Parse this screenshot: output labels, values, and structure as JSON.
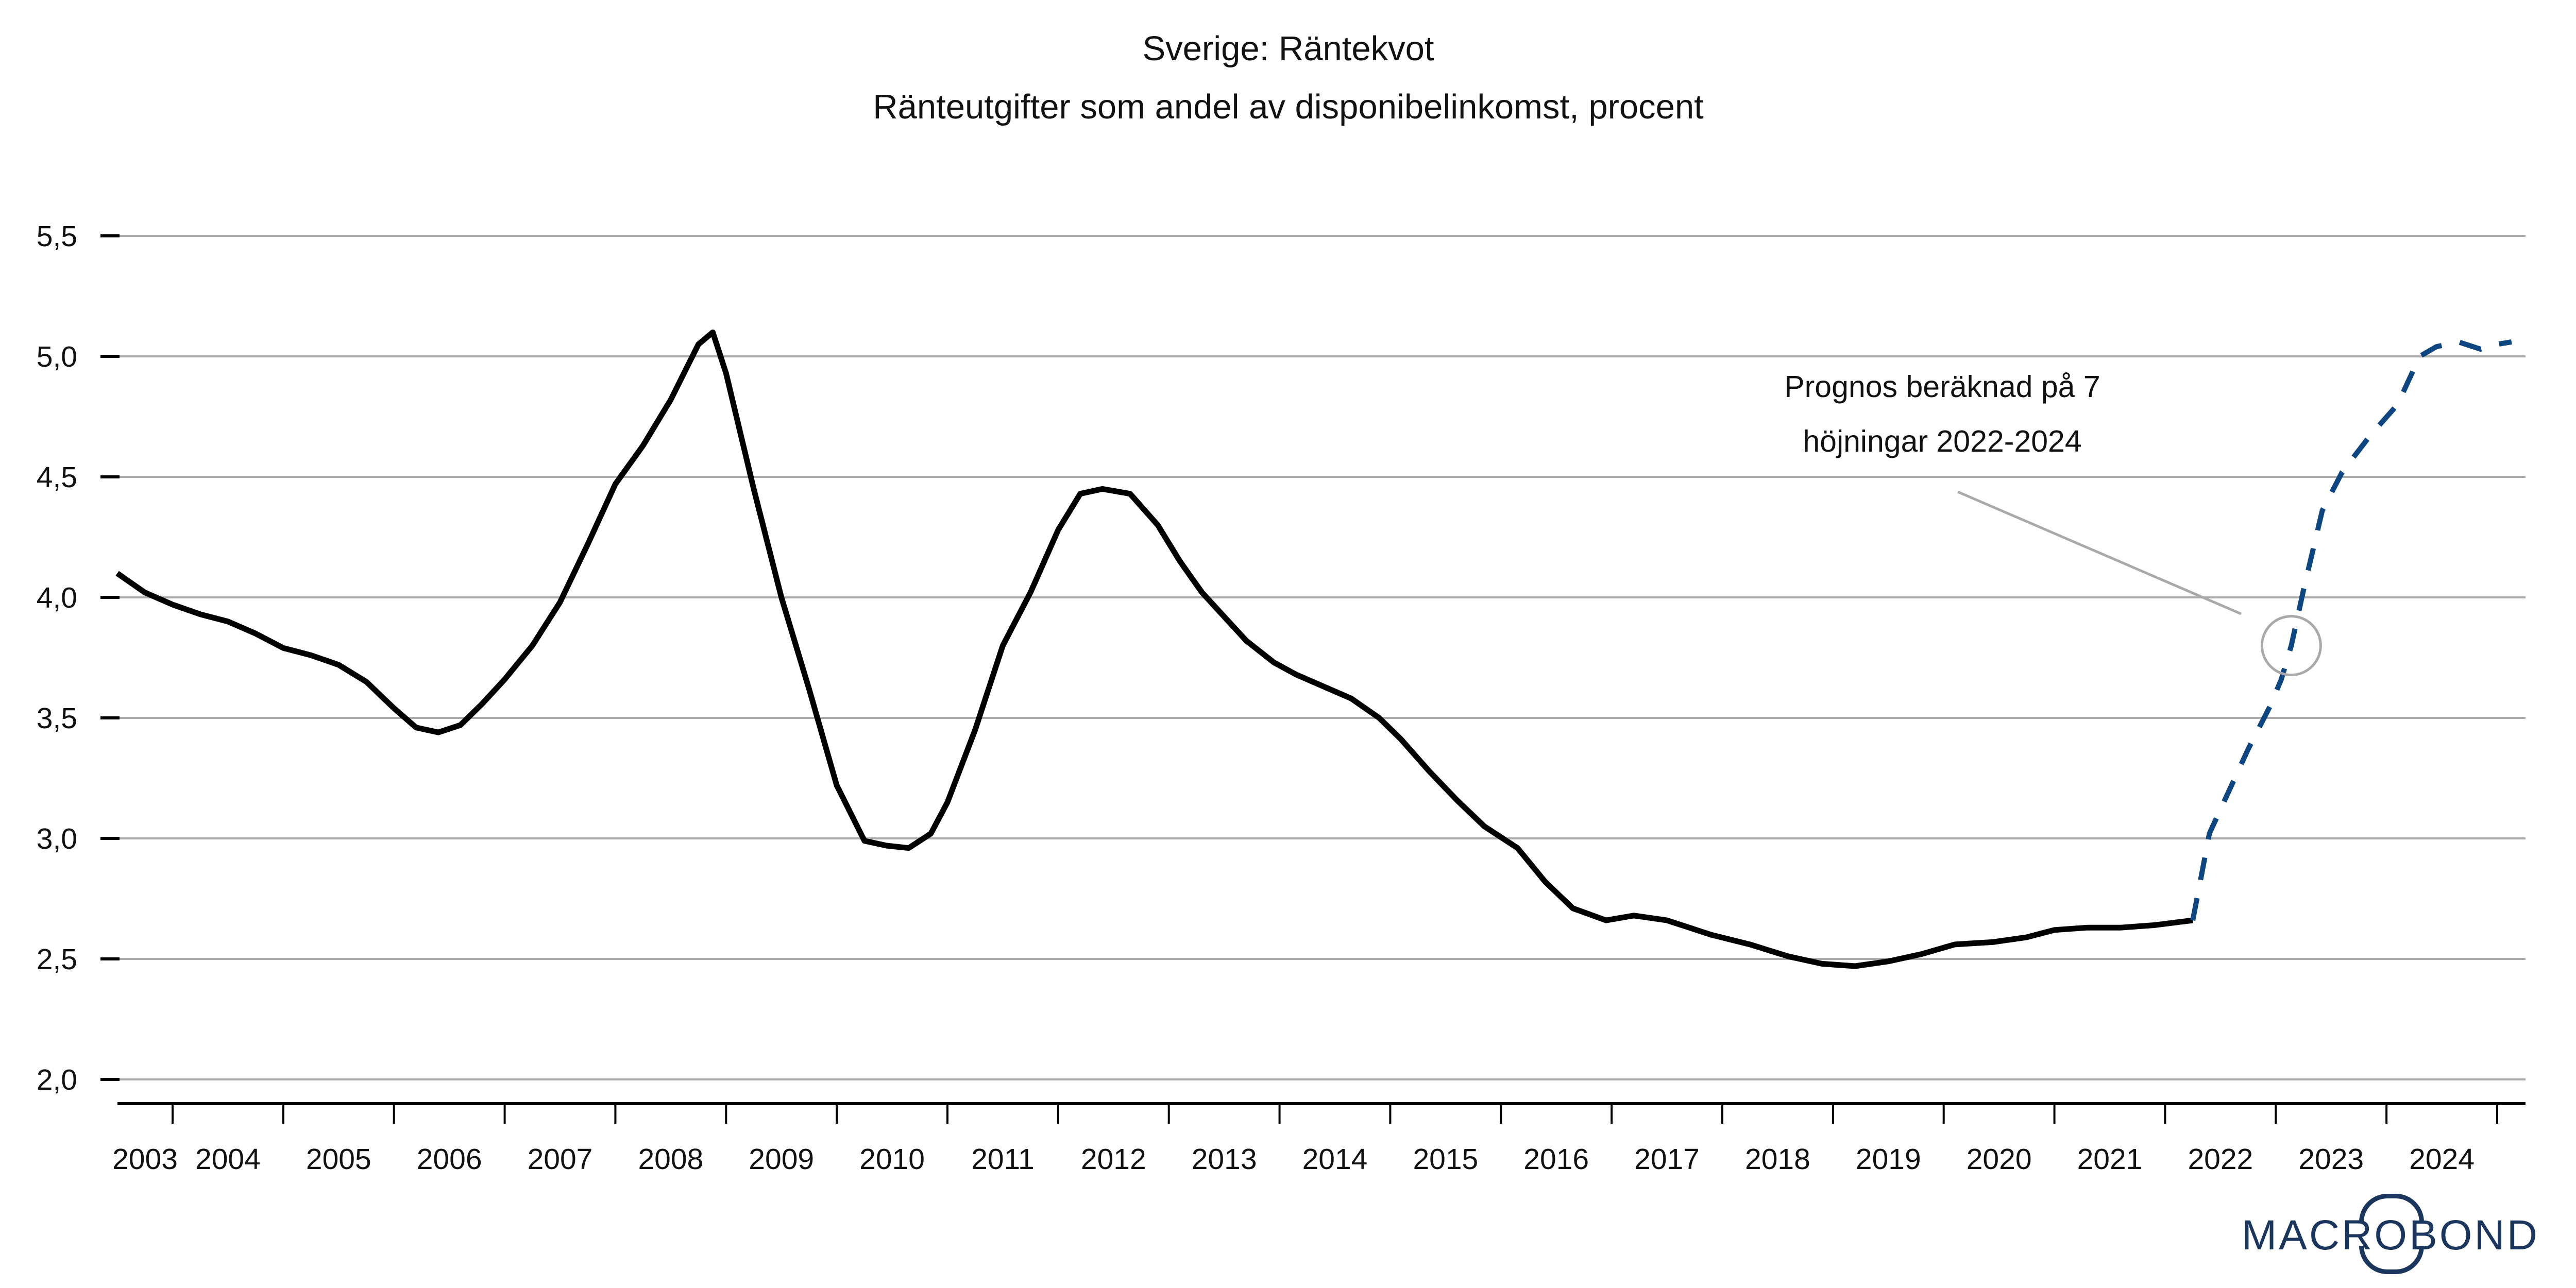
{
  "title": {
    "line1": "Sverige: Räntekvot",
    "line2": "Ränteutgifter som andel av disponibelinkomst, procent"
  },
  "annotation": {
    "line1": "Prognos beräknad på 7",
    "line2": "höjningar 2022-2024"
  },
  "logo": {
    "part1": "MACR",
    "part_o": "O",
    "part2": "BOND"
  },
  "colors": {
    "history_black": "#000000",
    "forecast_blue": "#0D4680",
    "gridline_gray": "#ABABAB",
    "pointer_gray": "#A9A9A9",
    "logo_navy": "#1B365D"
  },
  "chart_data": {
    "type": "line",
    "title": "Sverige: Räntekvot",
    "subtitle": "Ränteutgifter som andel av disponibelinkomst, procent",
    "xlabel": "",
    "ylabel": "",
    "grid": "horizontal",
    "legend_position": "none",
    "ylim": [
      2.0,
      5.5
    ],
    "xlim": [
      2003.5,
      2025.26
    ],
    "y_ticks": [
      [
        5.5,
        "5,5"
      ],
      [
        5.0,
        "5,0"
      ],
      [
        4.5,
        "4,5"
      ],
      [
        4.0,
        "4,0"
      ],
      [
        3.5,
        "3,5"
      ],
      [
        3.0,
        "3,0"
      ],
      [
        2.5,
        "2,5"
      ],
      [
        2.0,
        "2,0"
      ]
    ],
    "x_year_labels": [
      "2003",
      "2004",
      "2005",
      "2006",
      "2007",
      "2008",
      "2009",
      "2010",
      "2011",
      "2012",
      "2013",
      "2014",
      "2015",
      "2016",
      "2017",
      "2018",
      "2019",
      "2020",
      "2021",
      "2022",
      "2023",
      "2024"
    ],
    "x_boundary_ticks": [
      2004,
      2005,
      2006,
      2007,
      2008,
      2009,
      2010,
      2011,
      2012,
      2013,
      2014,
      2015,
      2016,
      2017,
      2018,
      2019,
      2020,
      2021,
      2022,
      2023,
      2024,
      2025
    ],
    "series": [
      {
        "style": "solid",
        "color": "#000000",
        "points": [
          [
            2003.5,
            4.1
          ],
          [
            2003.75,
            4.02
          ],
          [
            2004,
            3.97
          ],
          [
            2004.25,
            3.93
          ],
          [
            2004.5,
            3.9
          ],
          [
            2004.75,
            3.85
          ],
          [
            2005,
            3.79
          ],
          [
            2005.25,
            3.76
          ],
          [
            2005.5,
            3.72
          ],
          [
            2005.75,
            3.65
          ],
          [
            2006,
            3.54
          ],
          [
            2006.2,
            3.46
          ],
          [
            2006.4,
            3.44
          ],
          [
            2006.6,
            3.47
          ],
          [
            2006.8,
            3.56
          ],
          [
            2007,
            3.66
          ],
          [
            2007.25,
            3.8
          ],
          [
            2007.5,
            3.98
          ],
          [
            2007.75,
            4.22
          ],
          [
            2008,
            4.47
          ],
          [
            2008.25,
            4.63
          ],
          [
            2008.5,
            4.82
          ],
          [
            2008.75,
            5.05
          ],
          [
            2008.88,
            5.1
          ],
          [
            2009,
            4.93
          ],
          [
            2009.25,
            4.45
          ],
          [
            2009.5,
            4.0
          ],
          [
            2009.75,
            3.62
          ],
          [
            2010,
            3.22
          ],
          [
            2010.25,
            2.99
          ],
          [
            2010.45,
            2.97
          ],
          [
            2010.65,
            2.96
          ],
          [
            2010.85,
            3.02
          ],
          [
            2011,
            3.15
          ],
          [
            2011.25,
            3.45
          ],
          [
            2011.5,
            3.8
          ],
          [
            2011.75,
            4.02
          ],
          [
            2012,
            4.28
          ],
          [
            2012.2,
            4.43
          ],
          [
            2012.4,
            4.45
          ],
          [
            2012.65,
            4.43
          ],
          [
            2012.9,
            4.3
          ],
          [
            2013.1,
            4.15
          ],
          [
            2013.3,
            4.02
          ],
          [
            2013.5,
            3.92
          ],
          [
            2013.7,
            3.82
          ],
          [
            2013.95,
            3.73
          ],
          [
            2014.15,
            3.68
          ],
          [
            2014.4,
            3.63
          ],
          [
            2014.65,
            3.58
          ],
          [
            2014.9,
            3.5
          ],
          [
            2015.1,
            3.41
          ],
          [
            2015.35,
            3.28
          ],
          [
            2015.6,
            3.16
          ],
          [
            2015.85,
            3.05
          ],
          [
            2016.15,
            2.96
          ],
          [
            2016.4,
            2.82
          ],
          [
            2016.65,
            2.71
          ],
          [
            2016.95,
            2.66
          ],
          [
            2017.2,
            2.68
          ],
          [
            2017.5,
            2.66
          ],
          [
            2017.9,
            2.6
          ],
          [
            2018.25,
            2.56
          ],
          [
            2018.6,
            2.51
          ],
          [
            2018.9,
            2.48
          ],
          [
            2019.2,
            2.47
          ],
          [
            2019.5,
            2.49
          ],
          [
            2019.8,
            2.52
          ],
          [
            2020.1,
            2.56
          ],
          [
            2020.45,
            2.57
          ],
          [
            2020.75,
            2.59
          ],
          [
            2021,
            2.62
          ],
          [
            2021.3,
            2.63
          ],
          [
            2021.6,
            2.63
          ],
          [
            2021.9,
            2.64
          ],
          [
            2022.25,
            2.66
          ]
        ]
      },
      {
        "style": "dashed",
        "color": "#0D4680",
        "points": [
          [
            2022.25,
            2.66
          ],
          [
            2022.33,
            2.85
          ],
          [
            2022.4,
            3.02
          ],
          [
            2022.55,
            3.17
          ],
          [
            2022.75,
            3.37
          ],
          [
            2022.95,
            3.55
          ],
          [
            2023.05,
            3.66
          ],
          [
            2023.14,
            3.8
          ],
          [
            2023.25,
            4.03
          ],
          [
            2023.42,
            4.36
          ],
          [
            2023.6,
            4.52
          ],
          [
            2023.85,
            4.67
          ],
          [
            2024.1,
            4.8
          ],
          [
            2024.3,
            5.0
          ],
          [
            2024.45,
            5.04
          ],
          [
            2024.65,
            5.06
          ],
          [
            2024.85,
            5.03
          ],
          [
            2025.0,
            5.05
          ],
          [
            2025.13,
            5.06
          ]
        ]
      }
    ],
    "annotation_circle": {
      "year": 2023.14,
      "value": 3.8
    },
    "annotation_text": "Prognos beräknad på 7 höjningar 2022-2024"
  }
}
